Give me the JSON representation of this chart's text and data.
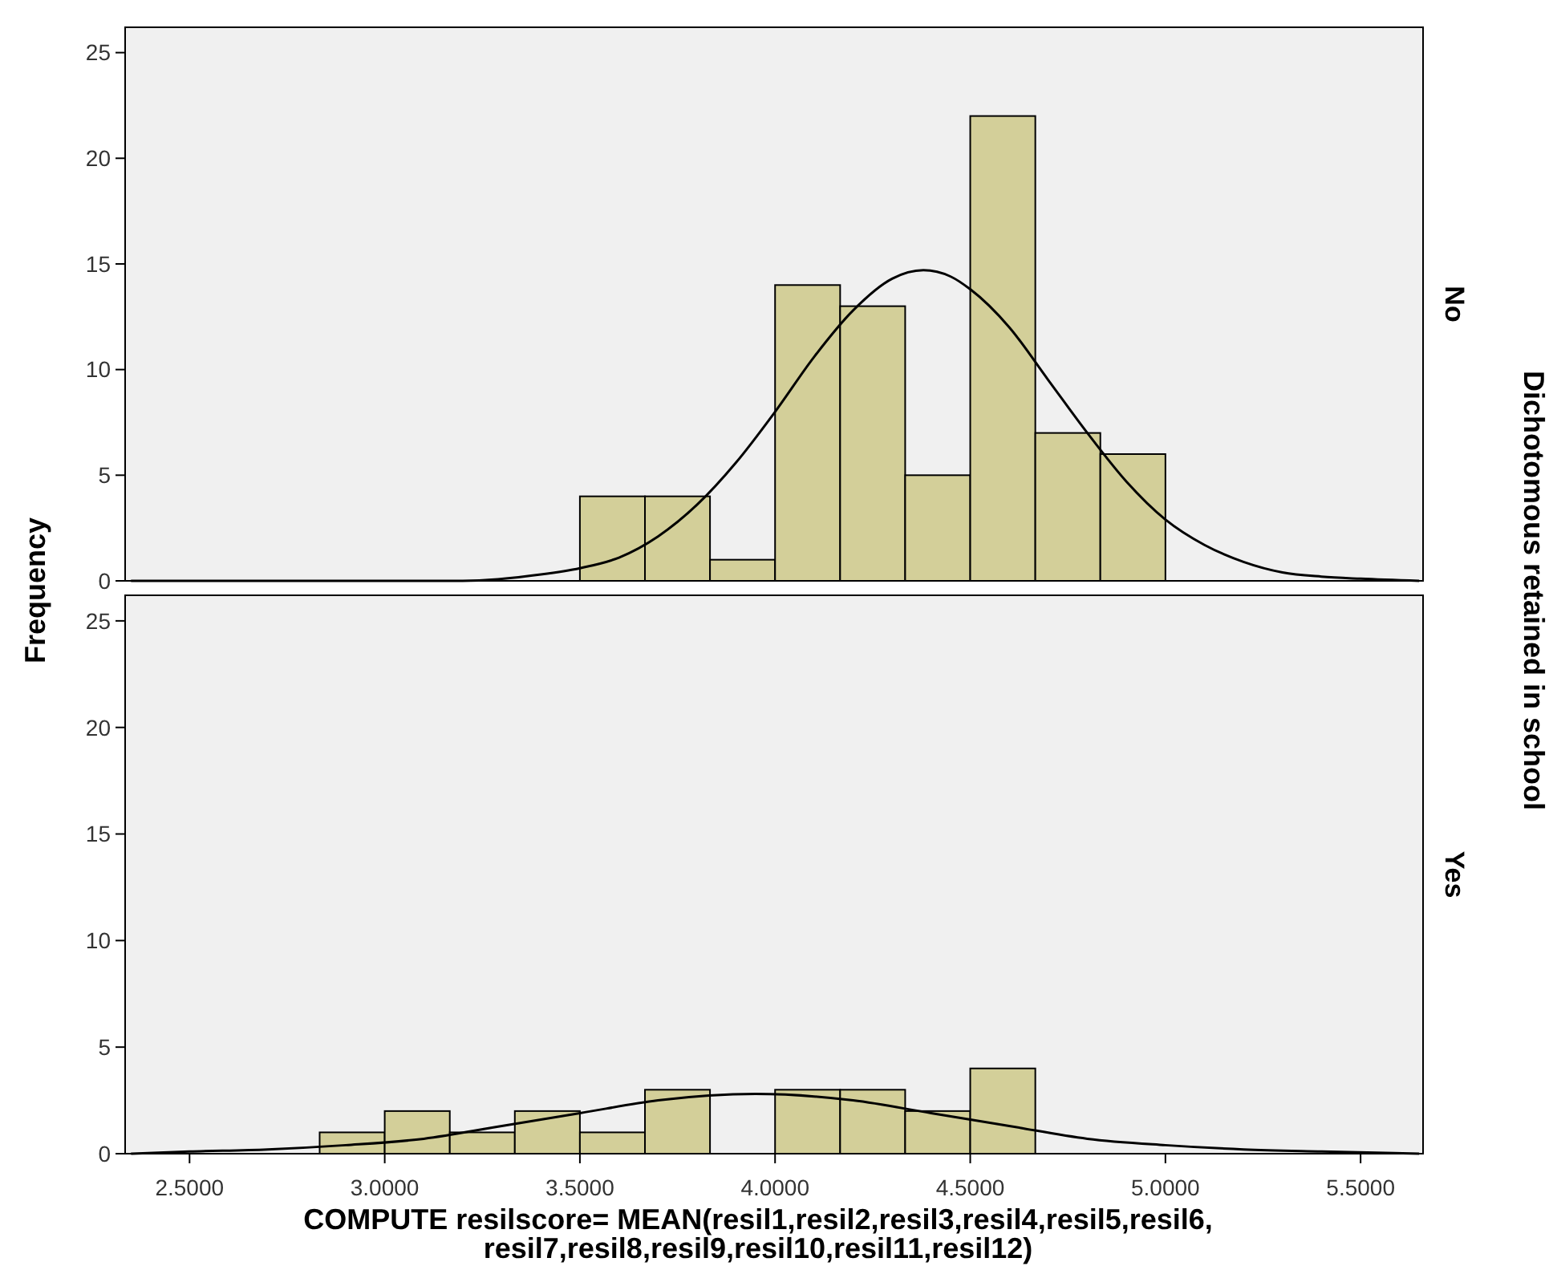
{
  "chart_data": [
    {
      "type": "histogram",
      "y2label": "No",
      "ylabel": "Frequency",
      "annotations": [
        "Dichotomous retained in school"
      ],
      "color": "#d3cf99",
      "bins": [
        3.5,
        3.6667,
        3.8333,
        4.0,
        4.1667,
        4.3333,
        4.5,
        4.6667,
        4.8333,
        5.0
      ],
      "values": [
        4,
        4,
        1,
        14,
        13,
        5,
        22,
        7,
        6
      ],
      "series": [
        {
          "type": "line",
          "color": "#000000",
          "x": [
            2.35,
            2.8,
            3.0,
            3.2,
            3.4,
            3.5,
            3.6,
            3.7,
            3.8,
            3.9,
            4.0,
            4.1,
            4.2,
            4.3,
            4.38,
            4.45,
            4.5,
            4.6,
            4.7,
            4.8,
            4.9,
            5.0,
            5.1,
            5.2,
            5.3,
            5.4,
            5.5,
            5.65
          ],
          "values": [
            0,
            0,
            0,
            0,
            0.3,
            0.6,
            1.1,
            2.1,
            3.6,
            5.6,
            8.0,
            10.6,
            12.8,
            14.3,
            14.7,
            14.4,
            13.8,
            12.0,
            9.5,
            7.0,
            4.7,
            2.9,
            1.7,
            0.9,
            0.4,
            0.2,
            0.1,
            0
          ]
        }
      ],
      "xlim": [
        2.335,
        5.66
      ],
      "ylim": [
        0,
        26.2
      ],
      "yticks": [
        0,
        5,
        10,
        15,
        20,
        25
      ],
      "tick_labels": "y",
      "grid": false,
      "marker": "none",
      "line_style": "solid"
    },
    {
      "type": "histogram",
      "y2label": "Yes",
      "xlabel": "COMPUTE resilscore= MEAN(resil1,resil2,resil3,resil4,resil5,resil6, resil7,resil8,resil9,resil10,resil11,resil12)",
      "color": "#d3cf99",
      "bins": [
        2.8333,
        3.0,
        3.1667,
        3.3333,
        3.5,
        3.6667,
        3.8333,
        4.0,
        4.1667,
        4.3333,
        4.5,
        4.6667
      ],
      "values": [
        1,
        2,
        1,
        2,
        1,
        3,
        0,
        3,
        3,
        2,
        4
      ],
      "series": [
        {
          "type": "line",
          "color": "#000000",
          "x": [
            2.35,
            2.5,
            2.7,
            2.9,
            3.1,
            3.3,
            3.5,
            3.7,
            3.95,
            4.2,
            4.4,
            4.6,
            4.8,
            5.0,
            5.2,
            5.4,
            5.65
          ],
          "values": [
            0,
            0.1,
            0.2,
            0.4,
            0.7,
            1.3,
            1.9,
            2.5,
            2.8,
            2.5,
            1.9,
            1.3,
            0.7,
            0.4,
            0.2,
            0.1,
            0
          ]
        }
      ],
      "xlim": [
        2.335,
        5.66
      ],
      "xticks": [
        {
          "value": 2.5,
          "label": "2.5000"
        },
        {
          "value": 3,
          "label": "3.0000"
        },
        {
          "value": 3.5,
          "label": "3.5000"
        },
        {
          "value": 4,
          "label": "4.0000"
        },
        {
          "value": 4.5,
          "label": "4.5000"
        },
        {
          "value": 5,
          "label": "5.0000"
        },
        {
          "value": 5.5,
          "label": "5.5000"
        }
      ],
      "ylim": [
        0,
        26.2
      ],
      "yticks": [
        0,
        5,
        10,
        15,
        20,
        25
      ],
      "grid": false,
      "marker": "none",
      "line_style": "solid"
    }
  ]
}
